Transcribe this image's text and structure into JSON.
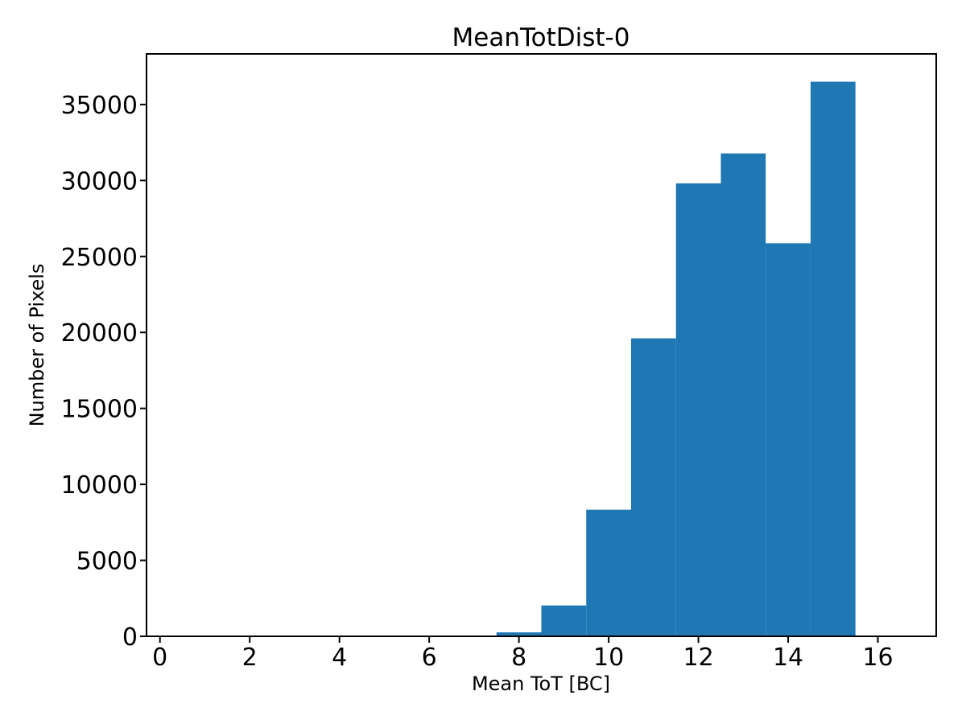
{
  "chart_data": {
    "type": "bar",
    "subtype": "histogram",
    "title": "MeanTotDist-0",
    "xlabel": "Mean ToT [BC]",
    "ylabel": "Number of Pixels",
    "bar_color": "#1f77b4",
    "bin_edges": [
      0.5,
      1.5,
      2.5,
      3.5,
      4.5,
      5.5,
      6.5,
      7.5,
      8.5,
      9.5,
      10.5,
      11.5,
      12.5,
      13.5,
      14.5,
      15.5,
      16.5
    ],
    "counts": [
      0,
      0,
      0,
      0,
      0,
      0,
      0,
      260,
      2030,
      8330,
      19610,
      29810,
      31780,
      25870,
      36500,
      0
    ],
    "xticks": [
      0,
      2,
      4,
      6,
      8,
      10,
      12,
      14,
      16
    ],
    "yticks": [
      0,
      5000,
      10000,
      15000,
      20000,
      25000,
      30000,
      35000
    ],
    "xlim": [
      -0.3,
      17.3
    ],
    "ylim": [
      0,
      38330
    ],
    "grid": false,
    "legend": null
  }
}
